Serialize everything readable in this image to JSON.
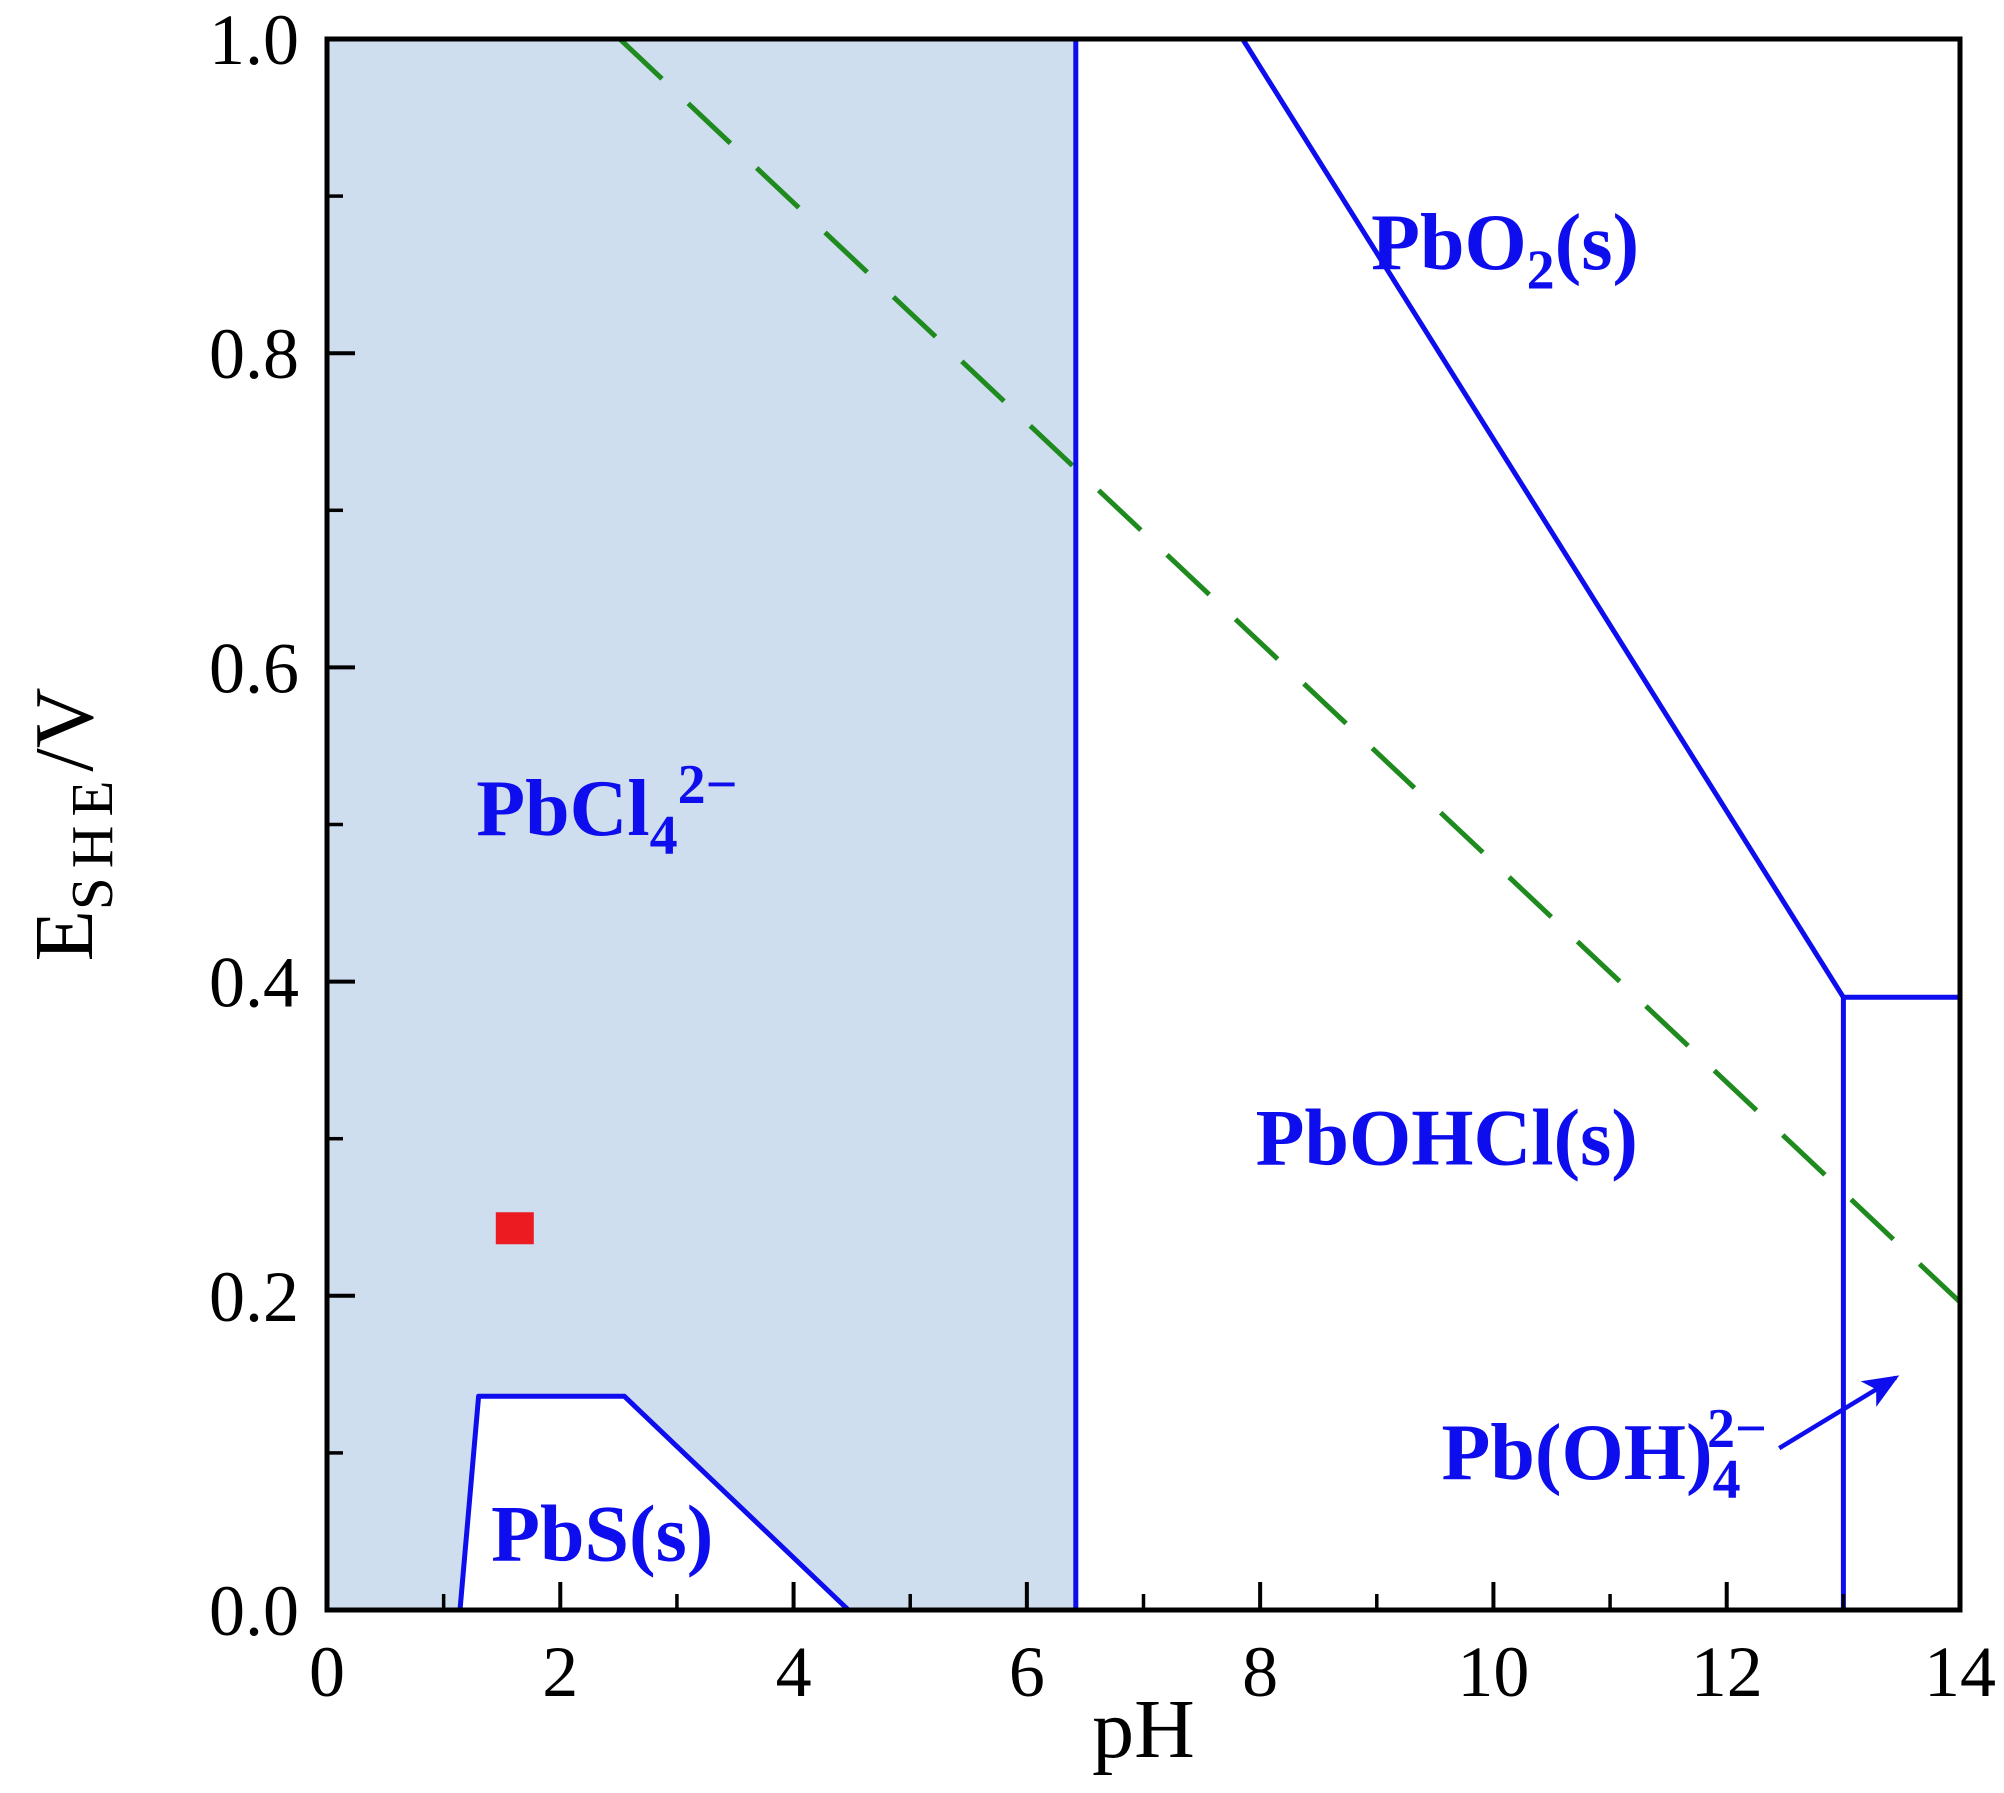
{
  "chart_data": {
    "type": "line",
    "subtype": "pourbaix-phase-diagram",
    "title": "",
    "xlabel": "pH",
    "ylabel": "E_SHE/V",
    "ylabel_parts": [
      {
        "t": "E"
      },
      {
        "t": "SHE",
        "sub": true,
        "spaced": true
      },
      {
        "t": "/V"
      }
    ],
    "xlim": [
      0,
      14
    ],
    "ylim": [
      0.0,
      1.0
    ],
    "x_major_ticks": [
      0,
      2,
      4,
      6,
      8,
      10,
      12,
      14
    ],
    "x_tick_labels": [
      "0",
      "2",
      "4",
      "6",
      "8",
      "10",
      "12",
      "14"
    ],
    "x_minor_ticks": [
      1,
      3,
      5,
      7,
      9,
      11,
      13
    ],
    "y_major_ticks": [
      0.0,
      0.2,
      0.4,
      0.6,
      0.8,
      1.0
    ],
    "y_tick_labels": [
      "0.0",
      "0.2",
      "0.4",
      "0.6",
      "0.8",
      "1.0"
    ],
    "y_minor_ticks": [
      0.1,
      0.3,
      0.5,
      0.7,
      0.9
    ],
    "shaded_region": {
      "polygon": [
        [
          0,
          0
        ],
        [
          0,
          1.0
        ],
        [
          6.42,
          1.0
        ],
        [
          6.42,
          0
        ]
      ],
      "cutout_polygon": [
        [
          1.14,
          0
        ],
        [
          1.3,
          0.136
        ],
        [
          2.55,
          0.136
        ],
        [
          4.47,
          0
        ]
      ]
    },
    "boundaries": [
      {
        "name": "pbcl4-pbohcl-boundary",
        "points": [
          [
            6.42,
            0
          ],
          [
            6.42,
            1.0
          ]
        ]
      },
      {
        "name": "pbo2-pbohcl-boundary",
        "points": [
          [
            7.85,
            1.0
          ],
          [
            13.0,
            0.39
          ]
        ]
      },
      {
        "name": "pbo2-pboh4-boundary",
        "points": [
          [
            13.0,
            0.39
          ],
          [
            14.0,
            0.39
          ]
        ]
      },
      {
        "name": "pbohcl-pboh4-boundary",
        "points": [
          [
            13.0,
            0
          ],
          [
            13.0,
            0.39
          ]
        ]
      },
      {
        "name": "pbs-boundary",
        "points": [
          [
            1.14,
            0
          ],
          [
            1.3,
            0.136
          ],
          [
            2.55,
            0.136
          ],
          [
            4.47,
            0
          ]
        ]
      }
    ],
    "dashed_line": {
      "name": "redox-guideline",
      "points": [
        [
          2.51,
          1.0
        ],
        [
          14.0,
          0.196
        ]
      ]
    },
    "marker": {
      "shape": "square",
      "x": 1.61,
      "y": 0.243
    },
    "annotation_arrow": {
      "from": [
        12.45,
        0.103
      ],
      "to": [
        13.45,
        0.148
      ]
    },
    "region_labels": [
      {
        "id": "pbcl4",
        "x": 2.4,
        "y": 0.51,
        "parts": [
          {
            "t": "PbCl"
          },
          {
            "t": "4",
            "sub": true
          },
          {
            "t": "2−",
            "sup": true
          }
        ]
      },
      {
        "id": "pbo2",
        "x": 10.1,
        "y": 0.87,
        "parts": [
          {
            "t": "PbO"
          },
          {
            "t": "2",
            "sub": true
          },
          {
            "t": "(s)"
          }
        ]
      },
      {
        "id": "pbohcl",
        "x": 9.6,
        "y": 0.3,
        "parts": [
          {
            "t": "PbOHCl(s)"
          }
        ]
      },
      {
        "id": "pboh4",
        "x": 10.95,
        "y": 0.1,
        "parts": [
          {
            "t": "Pb(OH)"
          },
          {
            "t": "4",
            "sub": true
          },
          {
            "t": "2−",
            "sup": true,
            "stack": true
          }
        ]
      },
      {
        "id": "pbs",
        "x": 2.36,
        "y": 0.048,
        "parts": [
          {
            "t": "PbS(s)"
          }
        ]
      }
    ],
    "colors": {
      "boundary": "#0d0dee",
      "label": "#0d0dee",
      "shade": "#cfdeee",
      "dashed": "#1f8b1f",
      "marker": "#ec1b22",
      "axis": "#000000"
    }
  }
}
